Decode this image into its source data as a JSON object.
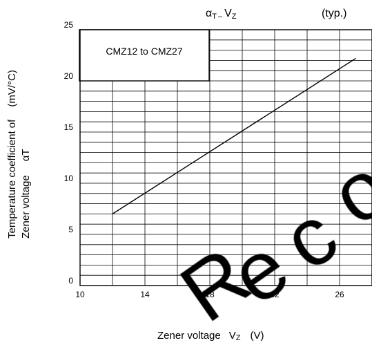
{
  "chart_data": {
    "type": "line",
    "title": {
      "alpha": "α",
      "alpha_sub": "T",
      "dash": "–",
      "v": "V",
      "v_sub": "Z",
      "note": "(typ.)"
    },
    "box_label": "CMZ12 to CMZ27",
    "xlabel": {
      "main": "Zener voltage",
      "symbol": "V",
      "symbol_sub": "Z",
      "unit": "(V)"
    },
    "ylabel": {
      "line1": "Temperature coefficient of",
      "line1_tail": "(mV/°C)",
      "line2": "Zener voltage",
      "symbol": "αT"
    },
    "xlim": [
      10,
      28
    ],
    "ylim": [
      0,
      25
    ],
    "x_ticks": [
      {
        "value": 10,
        "label": "10"
      },
      {
        "value": 14,
        "label": "14"
      },
      {
        "value": 18,
        "label": "18"
      },
      {
        "value": 22,
        "label": "22"
      },
      {
        "value": 26,
        "label": "26"
      }
    ],
    "y_ticks": [
      {
        "value": 0,
        "label": "0"
      },
      {
        "value": 5,
        "label": "5"
      },
      {
        "value": 10,
        "label": "10"
      },
      {
        "value": 15,
        "label": "15"
      },
      {
        "value": 20,
        "label": "20"
      },
      {
        "value": 25,
        "label": "25"
      }
    ],
    "x_minor_step": 2,
    "y_minor_step": 1,
    "grid": true,
    "series": [
      {
        "x": [
          12,
          27
        ],
        "y": [
          7,
          22.2
        ]
      }
    ],
    "watermark_text": "Reco"
  }
}
